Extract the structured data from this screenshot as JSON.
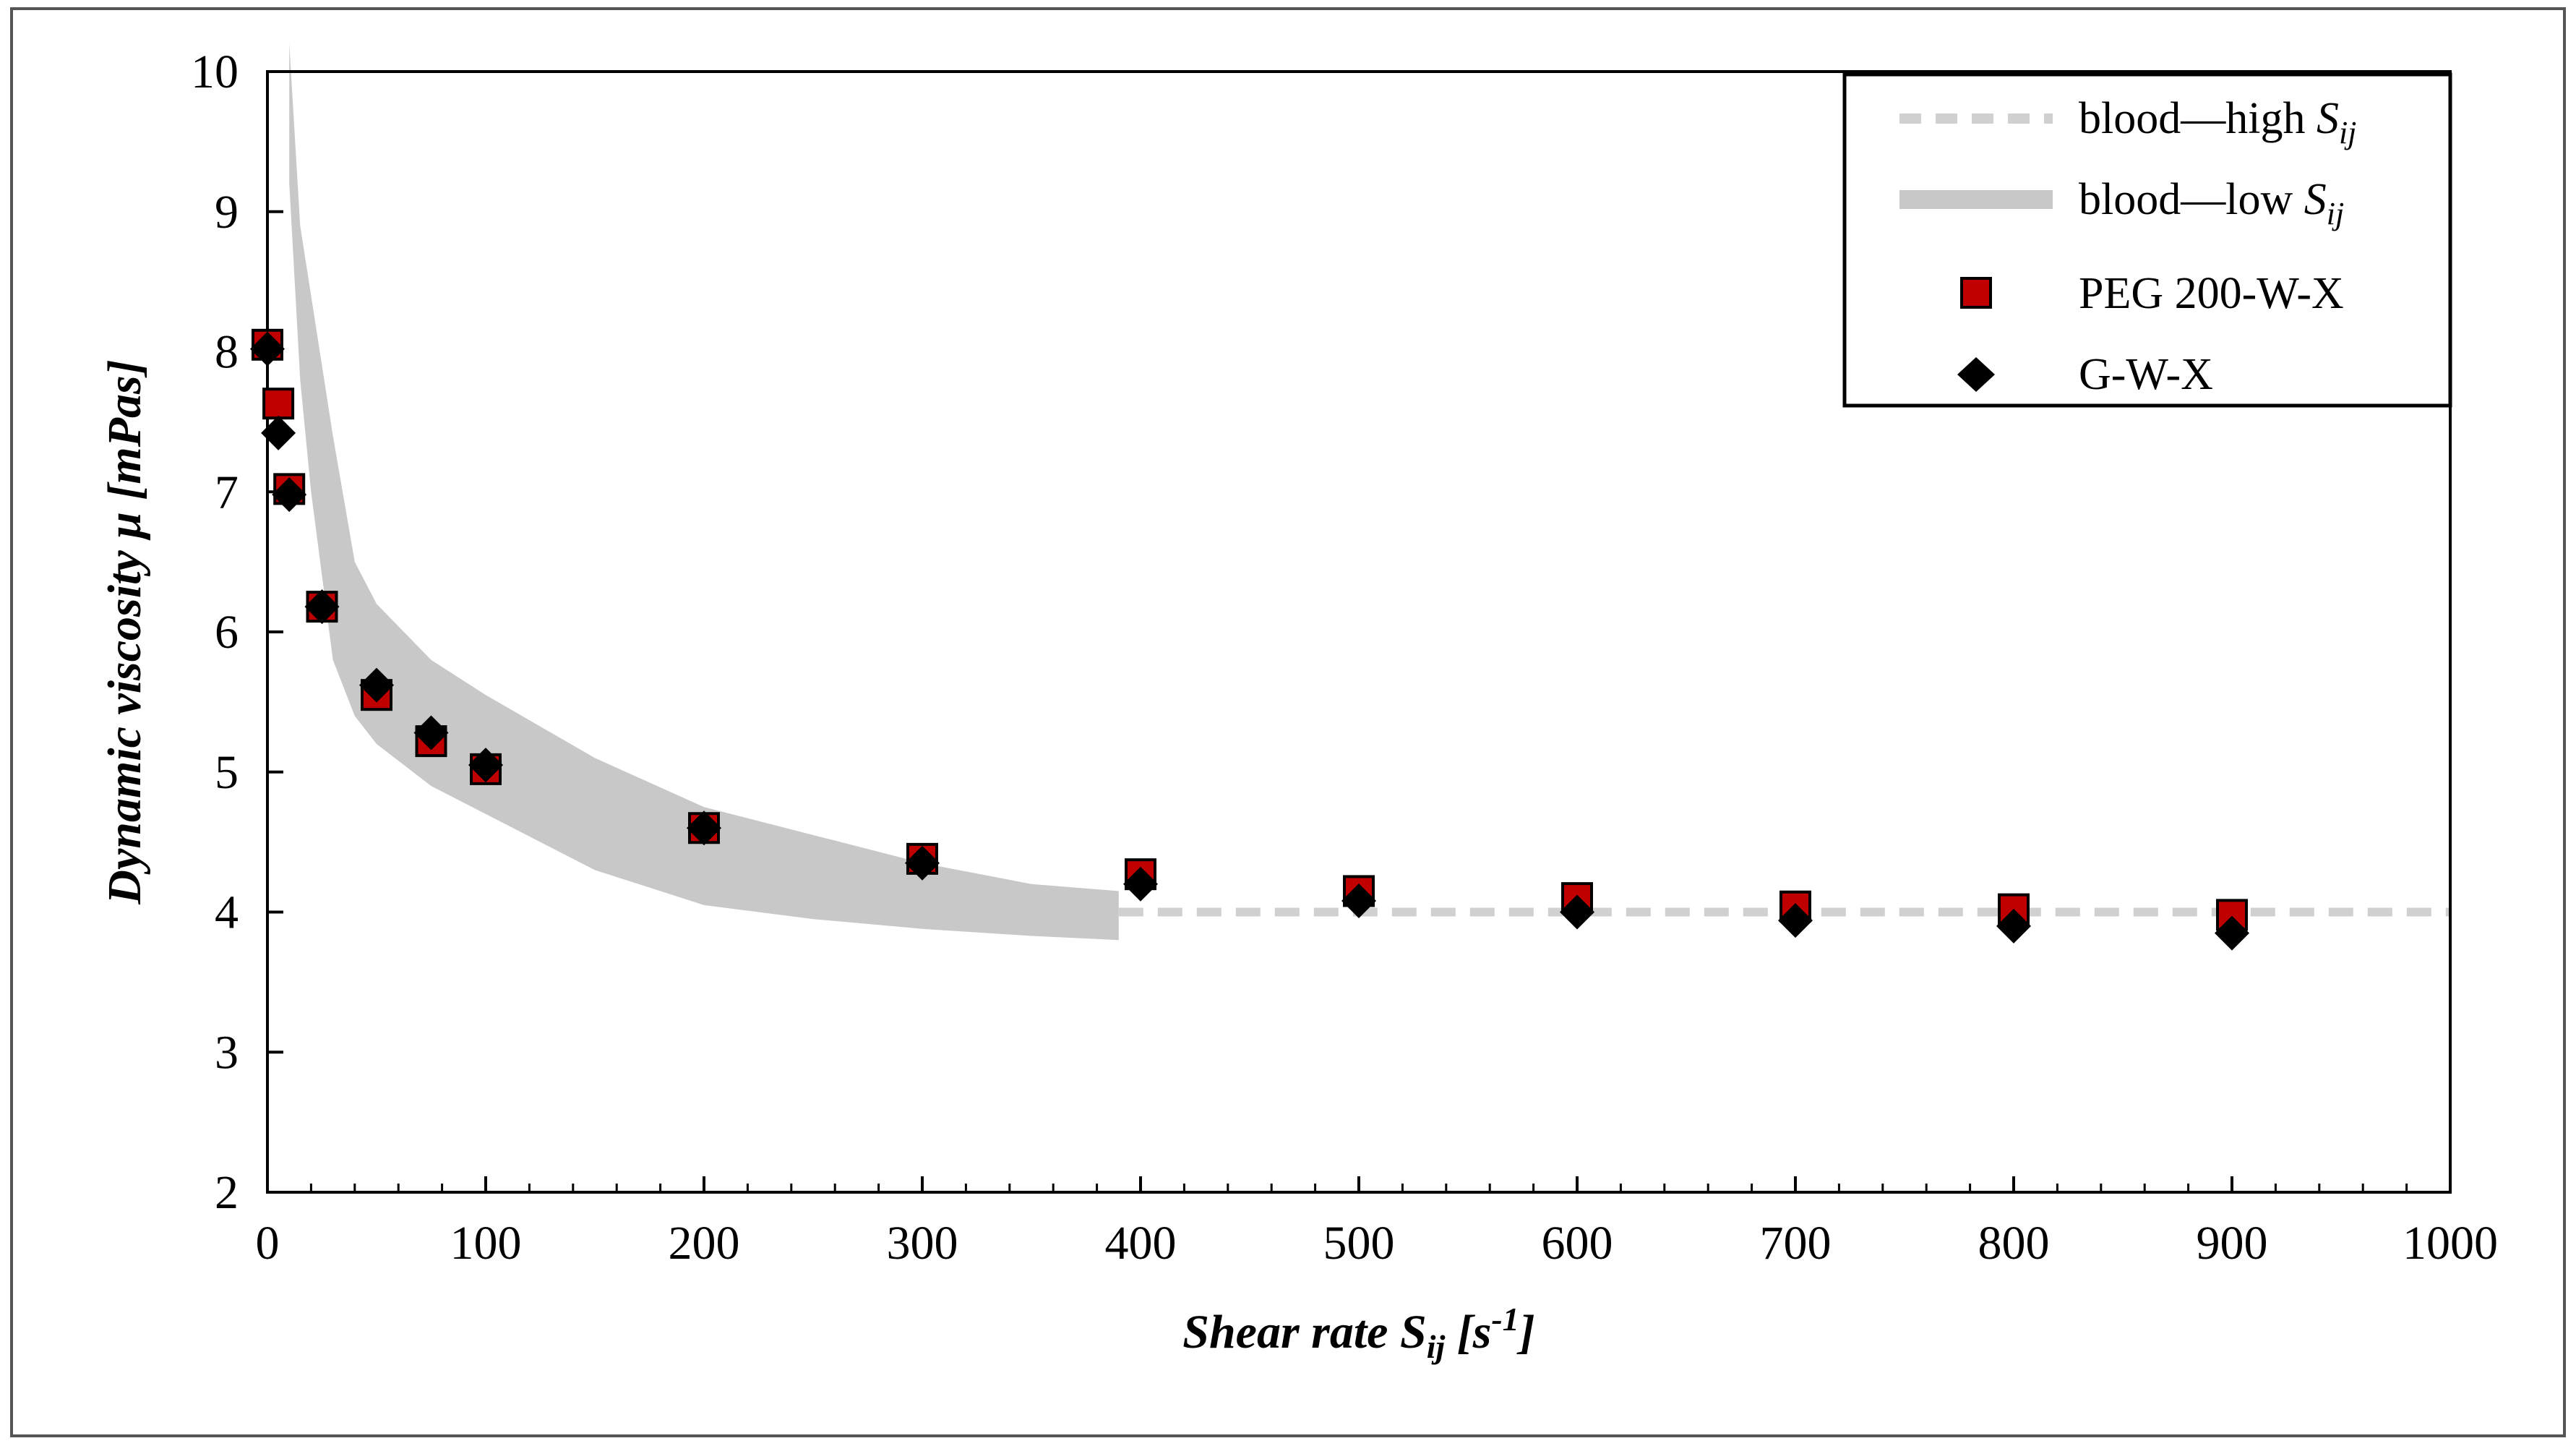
{
  "chart_data": {
    "type": "scatter",
    "title": "",
    "xlabel": "Shear rate S",
    "xlabel_sub": "ij",
    "xlabel_unit_open": " [s",
    "xlabel_sup": "-1",
    "xlabel_unit_close": "]",
    "ylabel": "Dynamic viscosity μ [mPas]",
    "xlim": [
      0,
      1000
    ],
    "ylim": [
      2,
      10
    ],
    "x_ticks": [
      "0",
      "100",
      "200",
      "300",
      "400",
      "500",
      "600",
      "700",
      "800",
      "900",
      "1000"
    ],
    "y_ticks": [
      "2",
      "3",
      "4",
      "5",
      "6",
      "7",
      "8",
      "9",
      "10"
    ],
    "legend_position": "top-right",
    "colors": {
      "band": "#c8c8c8",
      "dashed": "#d0d0d0",
      "square_fill": "#c00000",
      "marker_edge": "#000000",
      "diamond_fill": "#000000"
    },
    "series": [
      {
        "name": "blood—high ",
        "symbol": "S",
        "symbol_sub": "ij",
        "kind": "dashed-line",
        "x": [
          390,
          1000
        ],
        "y": [
          4.0,
          4.0
        ]
      },
      {
        "name": "blood—low ",
        "symbol": "S",
        "symbol_sub": "ij",
        "kind": "band",
        "x": [
          10,
          15,
          20,
          30,
          40,
          50,
          75,
          100,
          150,
          200,
          250,
          300,
          350,
          390
        ],
        "upper": [
          10.2,
          8.9,
          8.4,
          7.4,
          6.5,
          6.2,
          5.8,
          5.55,
          5.1,
          4.75,
          4.55,
          4.35,
          4.2,
          4.15
        ],
        "lower": [
          9.2,
          7.8,
          7.0,
          5.8,
          5.4,
          5.2,
          4.9,
          4.7,
          4.3,
          4.05,
          3.95,
          3.88,
          3.83,
          3.8
        ]
      },
      {
        "name": "PEG 200-W-X",
        "kind": "square",
        "x": [
          0,
          5,
          10,
          25,
          50,
          75,
          100,
          200,
          300,
          400,
          500,
          600,
          700,
          800,
          900
        ],
        "y": [
          8.05,
          7.63,
          7.02,
          6.18,
          5.55,
          5.22,
          5.02,
          4.6,
          4.38,
          4.27,
          4.15,
          4.1,
          4.04,
          4.02,
          3.98
        ]
      },
      {
        "name": "G-W-X",
        "kind": "diamond",
        "x": [
          0,
          5,
          10,
          25,
          50,
          75,
          100,
          200,
          300,
          400,
          500,
          600,
          700,
          800,
          900
        ],
        "y": [
          8.02,
          7.42,
          6.98,
          6.18,
          5.62,
          5.28,
          5.05,
          4.6,
          4.35,
          4.2,
          4.08,
          4.0,
          3.94,
          3.9,
          3.85
        ]
      }
    ]
  }
}
